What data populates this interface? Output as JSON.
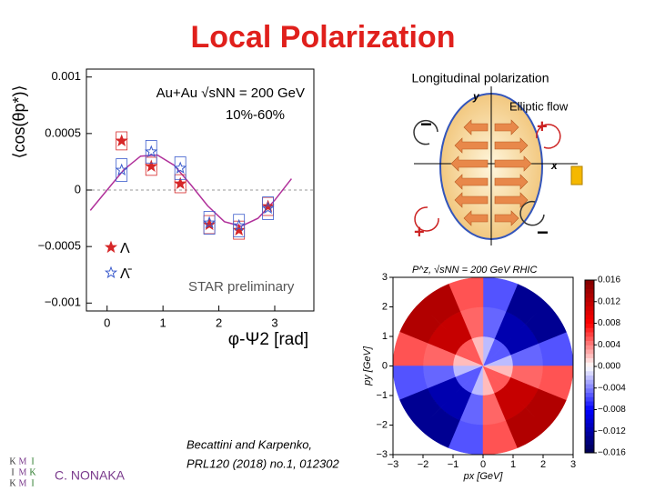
{
  "title": "Local Polarization",
  "author": "C. NONAKA",
  "reference": [
    "Becattini and Karpenko,",
    "PRL120 (2018) no.1, 012302"
  ],
  "logo": [
    "K",
    "M",
    "I",
    "I",
    "M",
    "K",
    "K",
    "M",
    "I"
  ],
  "diagram": {
    "title": "Longitudinal polarization",
    "flow_label": "Elliptic flow",
    "x_axis": "x",
    "y_axis": "y",
    "signs": [
      "−",
      "+",
      "+",
      "−"
    ]
  },
  "chart_data": [
    {
      "type": "scatter",
      "ylabel": "⟨cos(θp*)⟩",
      "xlabel": "φ-Ψ2 [rad]",
      "annotations": [
        "Au+Au √sNN = 200 GeV",
        "10%-60%",
        "STAR preliminary"
      ],
      "xlim": [
        -0.37,
        3.7
      ],
      "xticks": [
        0,
        1,
        2,
        3
      ],
      "ylim": [
        -0.00107,
        0.00107
      ],
      "yticks": [
        {
          "value": 0.001,
          "label": "0.001"
        },
        {
          "value": 0.0005,
          "label": "0.0005"
        },
        0,
        {
          "value": -0.0005,
          "label": "−0.0005"
        },
        {
          "value": -0.001,
          "label": "−0.001"
        }
      ],
      "series": [
        {
          "name": "Λ",
          "color": "#d62728",
          "marker": "filled-star",
          "x": [
            0.26,
            0.79,
            1.31,
            1.83,
            2.36,
            2.88
          ],
          "values": [
            0.000435,
            0.00021,
            5.6e-05,
            -0.000306,
            -0.000355,
            -0.000145
          ],
          "errors": [
            8e-05,
            8e-05,
            8e-05,
            8e-05,
            8e-05,
            8e-05
          ]
        },
        {
          "name": "Λ̄",
          "color": "#3b5bcc",
          "marker": "open-star",
          "x": [
            0.26,
            0.79,
            1.31,
            1.83,
            2.36,
            2.88
          ],
          "values": [
            0.000177,
            0.000339,
            0.000194,
            -0.00029,
            -0.000315,
            -0.000161
          ],
          "errors": [
            0.0001,
            0.0001,
            0.0001,
            0.0001,
            0.0001,
            0.0001
          ]
        }
      ],
      "fit": {
        "color": "#b0309a",
        "x": [
          -0.3,
          0,
          0.3,
          0.6,
          0.9,
          1.2,
          1.5,
          1.8,
          2.1,
          2.4,
          2.7,
          3.0,
          3.3
        ],
        "values": [
          -0.00018,
          0,
          0.00018,
          0.0003,
          0.00031,
          0.00022,
          4.5e-05,
          -0.00014,
          -0.00028,
          -0.00032,
          -0.00025,
          -9e-05,
          0.0001
        ]
      }
    },
    {
      "type": "polar-heatmap",
      "title": "P^z, √sNN = 200 GeV RHIC",
      "xlabel": "px [GeV]",
      "ylabel": "py [GeV]",
      "xlim": [
        -3,
        3
      ],
      "ylim": [
        -3,
        3
      ],
      "xticks": [
        {
          "value": -3,
          "label": "−3"
        },
        {
          "value": -2,
          "label": "−2"
        },
        {
          "value": -1,
          "label": "−1"
        },
        0,
        1,
        2,
        3
      ],
      "yticks": [
        {
          "value": -3,
          "label": "−3"
        },
        {
          "value": -2,
          "label": "−2"
        },
        {
          "value": -1,
          "label": "−1"
        },
        0,
        1,
        2,
        3
      ],
      "r_edges": [
        0,
        1,
        2,
        3
      ],
      "phi_edges": [
        0,
        22.5,
        45,
        67.5,
        90,
        112.5,
        135,
        157.5,
        180,
        202.5,
        225,
        247.5,
        270,
        292.5,
        315,
        337.5,
        360
      ],
      "values": [
        [
          -0.0021,
          -0.0052,
          -0.0052,
          -0.0021,
          0.0021,
          0.0052,
          0.0052,
          0.0021,
          -0.0021,
          -0.0052,
          -0.0052,
          -0.0021,
          0.0021,
          0.0052,
          0.0052,
          0.0021
        ],
        [
          -0.0048,
          -0.0116,
          -0.0116,
          -0.0048,
          0.0048,
          0.0116,
          0.0116,
          0.0048,
          -0.0048,
          -0.0116,
          -0.0116,
          -0.0048,
          0.0048,
          0.0116,
          0.0116,
          0.0048
        ],
        [
          -0.0054,
          -0.0129,
          -0.0129,
          -0.0054,
          0.0054,
          0.0129,
          0.0129,
          0.0054,
          -0.0054,
          -0.0129,
          -0.0129,
          -0.0054,
          0.0054,
          0.0129,
          0.0129,
          0.0054
        ]
      ],
      "zlim": [
        -0.016,
        0.016
      ],
      "zticks": [
        0.016,
        0.012,
        0.008,
        0.004,
        {
          "value": 0,
          "label": "0.000"
        },
        {
          "value": -0.004,
          "label": "−0.004"
        },
        {
          "value": -0.008,
          "label": "−0.008"
        },
        {
          "value": -0.012,
          "label": "−0.012"
        },
        {
          "value": -0.016,
          "label": "−0.016"
        }
      ],
      "colors": [
        "#00004d",
        "#0000ff",
        "#ffffff",
        "#ff0000",
        "#800000"
      ]
    }
  ]
}
